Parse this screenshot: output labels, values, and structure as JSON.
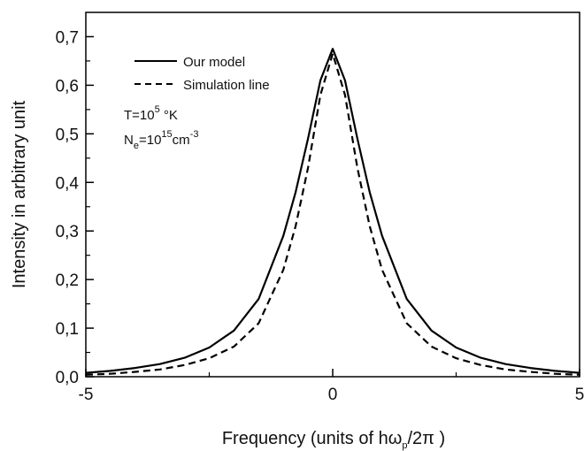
{
  "chart_data": {
    "type": "line",
    "title": "",
    "xlabel_main": "Frequency (units of h",
    "xlabel_omega": "ω",
    "xlabel_sub": "p",
    "xlabel_tail": "/2π )",
    "ylabel": "Intensity in arbitrary unit",
    "xlim": [
      -5,
      5
    ],
    "ylim": [
      0,
      0.75
    ],
    "x_ticks": [
      -5,
      0,
      5
    ],
    "x_tick_labels": [
      "-5",
      "0",
      "5"
    ],
    "y_ticks": [
      0,
      0.1,
      0.2,
      0.3,
      0.4,
      0.5,
      0.6,
      0.7
    ],
    "y_tick_labels": [
      "0,0",
      "0,1",
      "0,2",
      "0,3",
      "0,4",
      "0,5",
      "0,6",
      "0,7"
    ],
    "grid": false,
    "legend_position": "top-left",
    "series": [
      {
        "name": "Our model",
        "style": "solid",
        "color": "#000000",
        "x": [
          -5,
          -4.5,
          -4,
          -3.5,
          -3,
          -2.5,
          -2,
          -1.5,
          -1,
          -0.75,
          -0.5,
          -0.25,
          0,
          0.25,
          0.5,
          0.75,
          1,
          1.5,
          2,
          2.5,
          3,
          3.5,
          4,
          4.5,
          5
        ],
        "y": [
          0.008,
          0.012,
          0.018,
          0.026,
          0.039,
          0.06,
          0.095,
          0.16,
          0.29,
          0.38,
          0.49,
          0.61,
          0.675,
          0.61,
          0.49,
          0.38,
          0.29,
          0.16,
          0.095,
          0.06,
          0.039,
          0.026,
          0.018,
          0.012,
          0.008
        ]
      },
      {
        "name": "Simulation line",
        "style": "dashed",
        "color": "#000000",
        "x": [
          -5,
          -4.5,
          -4,
          -3.5,
          -3,
          -2.5,
          -2,
          -1.5,
          -1,
          -0.75,
          -0.5,
          -0.25,
          0,
          0.25,
          0.5,
          0.75,
          1,
          1.5,
          2,
          2.5,
          3,
          3.5,
          4,
          4.5,
          5
        ],
        "y": [
          0.004,
          0.006,
          0.01,
          0.015,
          0.024,
          0.038,
          0.062,
          0.11,
          0.22,
          0.31,
          0.43,
          0.58,
          0.665,
          0.58,
          0.43,
          0.31,
          0.22,
          0.11,
          0.062,
          0.038,
          0.024,
          0.015,
          0.01,
          0.006,
          0.004
        ]
      }
    ],
    "annotations": {
      "temperature_prefix": "T=10",
      "temperature_exp": "5",
      "temperature_unit": " °K",
      "density_prefix": "N",
      "density_sub": "e",
      "density_mid": "=10",
      "density_exp": "15",
      "density_unit": "cm",
      "density_unit_exp": "-3"
    }
  }
}
